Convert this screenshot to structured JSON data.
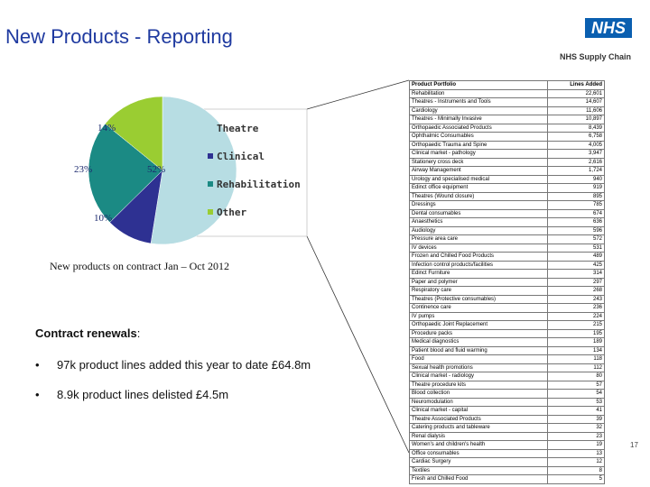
{
  "header": {
    "title": "New Products - Reporting",
    "logo_text": "NHS",
    "logo_subtitle": "NHS Supply Chain"
  },
  "chart_data": {
    "type": "pie",
    "title": "",
    "slices": [
      {
        "label": "Theatre",
        "value": 52,
        "display": "52%",
        "color": "#b7dde3"
      },
      {
        "label": "Clinical",
        "value": 10,
        "display": "10%",
        "color": "#2e3192"
      },
      {
        "label": "Rehabilitation",
        "value": 23,
        "display": "23%",
        "color": "#1b8a84"
      },
      {
        "label": "Other",
        "value": 14,
        "display": "14%",
        "color": "#9acd32"
      }
    ],
    "legend_position": "right",
    "caption": "New products on contract Jan – Oct 2012"
  },
  "contract": {
    "title_bold": "Contract renewals",
    "title_suffix": ":",
    "bullets": [
      {
        "marker": "•",
        "text": "97k product lines added this year to date  £64.8m"
      },
      {
        "marker": "•",
        "text": "8.9k product lines delisted £4.5m"
      }
    ]
  },
  "table": {
    "headers": [
      "Product Portfolio",
      "Lines Added"
    ],
    "rows": [
      [
        "Rehabilitation",
        "22,601"
      ],
      [
        "Theatres - Instruments and Tools",
        "14,607"
      ],
      [
        "Cardiology",
        "11,606"
      ],
      [
        "Theatres - Minimally Invasive",
        "10,897"
      ],
      [
        "Orthopaedic Associated Products",
        "8,439"
      ],
      [
        "Ophthalmic Consumables",
        "6,758"
      ],
      [
        "Orthopaedic Trauma and Spine",
        "4,005"
      ],
      [
        "Clinical market - pathology",
        "3,947"
      ],
      [
        "Stationery cross deck",
        "2,616"
      ],
      [
        "Airway Management",
        "1,724"
      ],
      [
        "Urology and specialised medical",
        "940"
      ],
      [
        "Edinct office equipment",
        "919"
      ],
      [
        "Theatres (Wound closure)",
        "895"
      ],
      [
        "Dressings",
        "785"
      ],
      [
        "Dental consumables",
        "674"
      ],
      [
        "Anaesthetics",
        "636"
      ],
      [
        "Audiology",
        "596"
      ],
      [
        "Pressure area care",
        "572"
      ],
      [
        "IV devices",
        "531"
      ],
      [
        "Frozen and Chilled Food Products",
        "489"
      ],
      [
        "Infection control products/facilities",
        "425"
      ],
      [
        "Edinct Furniture",
        "314"
      ],
      [
        "Paper and polymer",
        "297"
      ],
      [
        "Respiratory care",
        "268"
      ],
      [
        "Theatres (Protective consumables)",
        "243"
      ],
      [
        "Continence care",
        "236"
      ],
      [
        "IV pumps",
        "224"
      ],
      [
        "Orthopaedic Joint Replacement",
        "215"
      ],
      [
        "Procedure packs",
        "195"
      ],
      [
        "Medical diagnostics",
        "189"
      ],
      [
        "Patient blood and fluid warming",
        "134"
      ],
      [
        "Food",
        "118"
      ],
      [
        "Sexual health promotions",
        "112"
      ],
      [
        "Clinical market - radiology",
        "80"
      ],
      [
        "Theatre procedure kits",
        "57"
      ],
      [
        "Blood collection",
        "54"
      ],
      [
        "Neuromodulation",
        "53"
      ],
      [
        "Clinical market - capital",
        "41"
      ],
      [
        "Theatre Associated Products",
        "39"
      ],
      [
        "Catering products and tableware",
        "32"
      ],
      [
        "Renal dialysis",
        "23"
      ],
      [
        "Women's and children's health",
        "19"
      ],
      [
        "Office consumables",
        "13"
      ],
      [
        "Cardiac Surgery",
        "12"
      ],
      [
        "Textiles",
        "8"
      ],
      [
        "Fresh and Chilled Food",
        "5"
      ]
    ]
  },
  "footer": {
    "page_number": "17"
  }
}
